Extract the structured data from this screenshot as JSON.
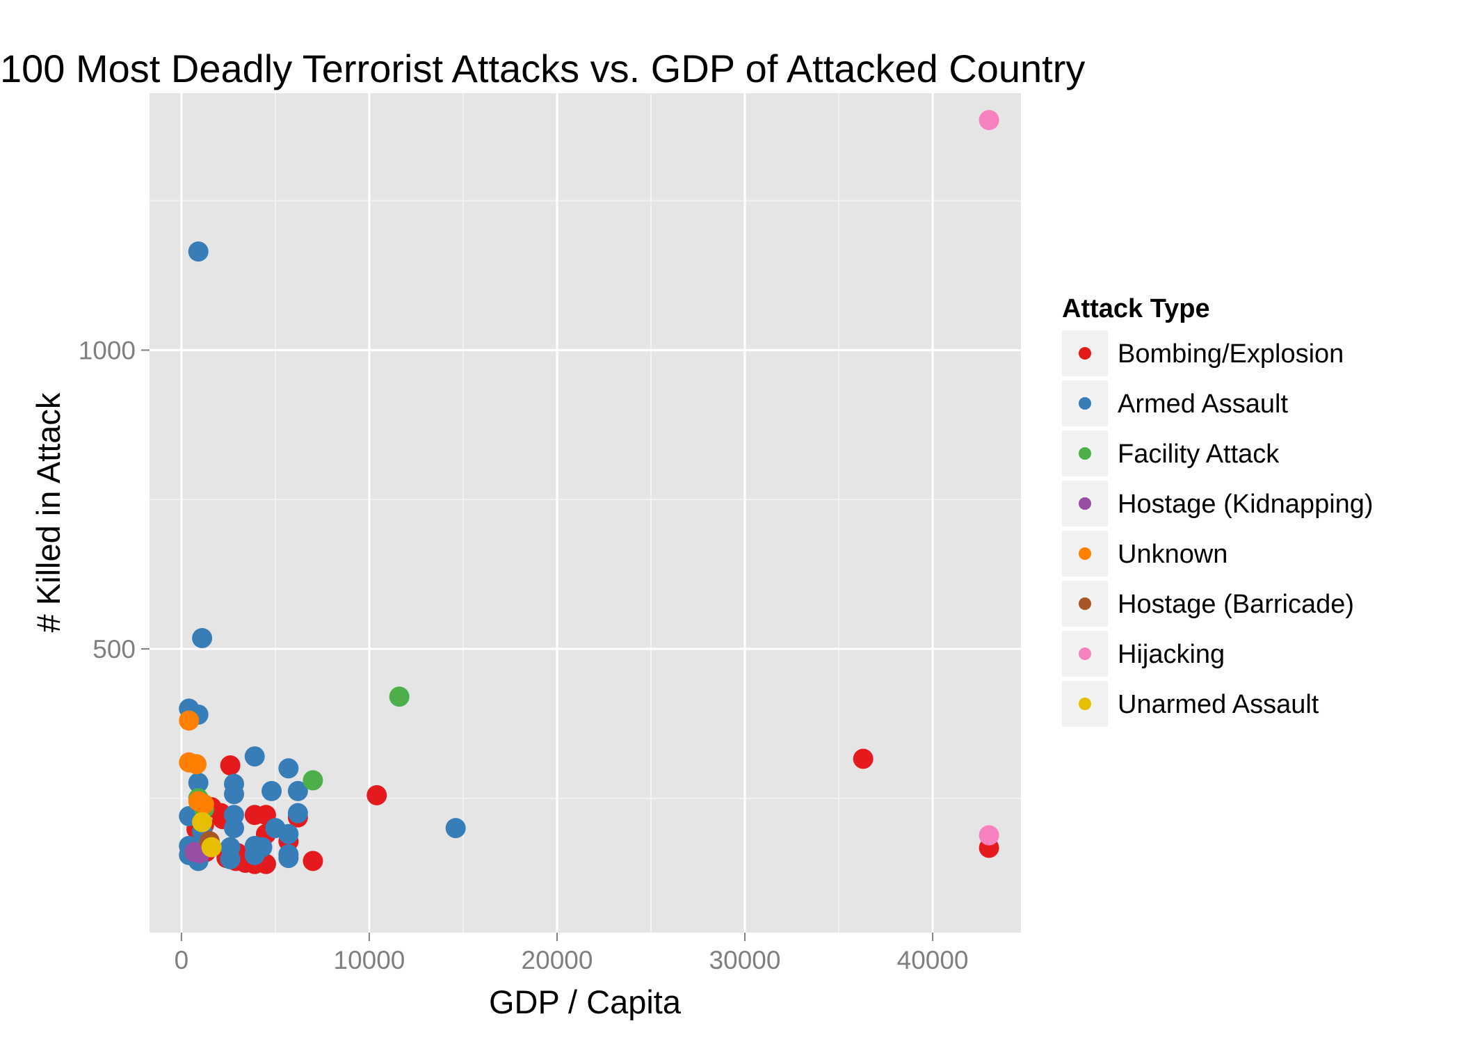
{
  "chart_data": {
    "type": "scatter",
    "title": "100 Most Deadly Terrorist Attacks vs. GDP of Attacked Country",
    "xlabel": "GDP / Capita",
    "ylabel": "# Killed in Attack",
    "xlim": [
      -1700,
      44700
    ],
    "ylim": [
      25,
      1430
    ],
    "x_ticks": [
      0,
      10000,
      20000,
      30000,
      40000
    ],
    "x_tick_labels": [
      "0",
      "10000",
      "20000",
      "30000",
      "40000"
    ],
    "y_ticks": [
      500,
      1000
    ],
    "y_tick_labels": [
      "500",
      "1000"
    ],
    "grid": true,
    "panel_background": "#e5e5e5",
    "legend": {
      "title": "Attack Type",
      "position": "right"
    },
    "series": [
      {
        "name": "Bombing/Explosion",
        "color": "#e41a1c",
        "points": [
          [
            2600,
            305
          ],
          [
            36300,
            316
          ],
          [
            10400,
            255
          ],
          [
            1600,
            235
          ],
          [
            2100,
            225
          ],
          [
            2200,
            215
          ],
          [
            3900,
            222
          ],
          [
            4500,
            222
          ],
          [
            6200,
            218
          ],
          [
            800,
            198
          ],
          [
            1200,
            205
          ],
          [
            4500,
            190
          ],
          [
            5700,
            178
          ],
          [
            2400,
            150
          ],
          [
            2900,
            145
          ],
          [
            3400,
            142
          ],
          [
            3900,
            140
          ],
          [
            4500,
            140
          ],
          [
            7000,
            145
          ],
          [
            43000,
            167
          ],
          [
            1300,
            160
          ],
          [
            3000,
            158
          ]
        ]
      },
      {
        "name": "Armed Assault",
        "color": "#377eb8",
        "points": [
          [
            900,
            1165
          ],
          [
            1100,
            518
          ],
          [
            400,
            400
          ],
          [
            900,
            390
          ],
          [
            3900,
            320
          ],
          [
            5700,
            300
          ],
          [
            900,
            276
          ],
          [
            2800,
            274
          ],
          [
            2800,
            257
          ],
          [
            4800,
            262
          ],
          [
            6200,
            262
          ],
          [
            2800,
            222
          ],
          [
            6200,
            225
          ],
          [
            400,
            220
          ],
          [
            2800,
            200
          ],
          [
            5000,
            200
          ],
          [
            5700,
            190
          ],
          [
            14600,
            200
          ],
          [
            1100,
            195
          ],
          [
            1300,
            178
          ],
          [
            400,
            170
          ],
          [
            3900,
            170
          ],
          [
            4300,
            168
          ],
          [
            2600,
            168
          ],
          [
            5700,
            156
          ],
          [
            400,
            155
          ],
          [
            900,
            145
          ],
          [
            2600,
            148
          ],
          [
            3900,
            155
          ],
          [
            5700,
            150
          ]
        ]
      },
      {
        "name": "Facility Attack",
        "color": "#4daf4a",
        "points": [
          [
            11600,
            420
          ],
          [
            7000,
            280
          ],
          [
            900,
            250
          ],
          [
            1200,
            232
          ]
        ]
      },
      {
        "name": "Hostage (Kidnapping)",
        "color": "#984ea3",
        "points": [
          [
            700,
            160
          ],
          [
            1000,
            158
          ]
        ]
      },
      {
        "name": "Unknown",
        "color": "#ff7f00",
        "points": [
          [
            400,
            380
          ],
          [
            400,
            310
          ],
          [
            800,
            307
          ],
          [
            900,
            245
          ],
          [
            1200,
            240
          ]
        ]
      },
      {
        "name": "Hostage (Barricade)",
        "color": "#a65628",
        "points": [
          [
            1500,
            178
          ]
        ]
      },
      {
        "name": "Hijacking",
        "color": "#f781bf",
        "points": [
          [
            43000,
            1385
          ],
          [
            43000,
            188
          ]
        ]
      },
      {
        "name": "Unarmed Assault",
        "color": "#e6c000",
        "points": [
          [
            1100,
            210
          ],
          [
            1600,
            168
          ]
        ]
      }
    ]
  }
}
